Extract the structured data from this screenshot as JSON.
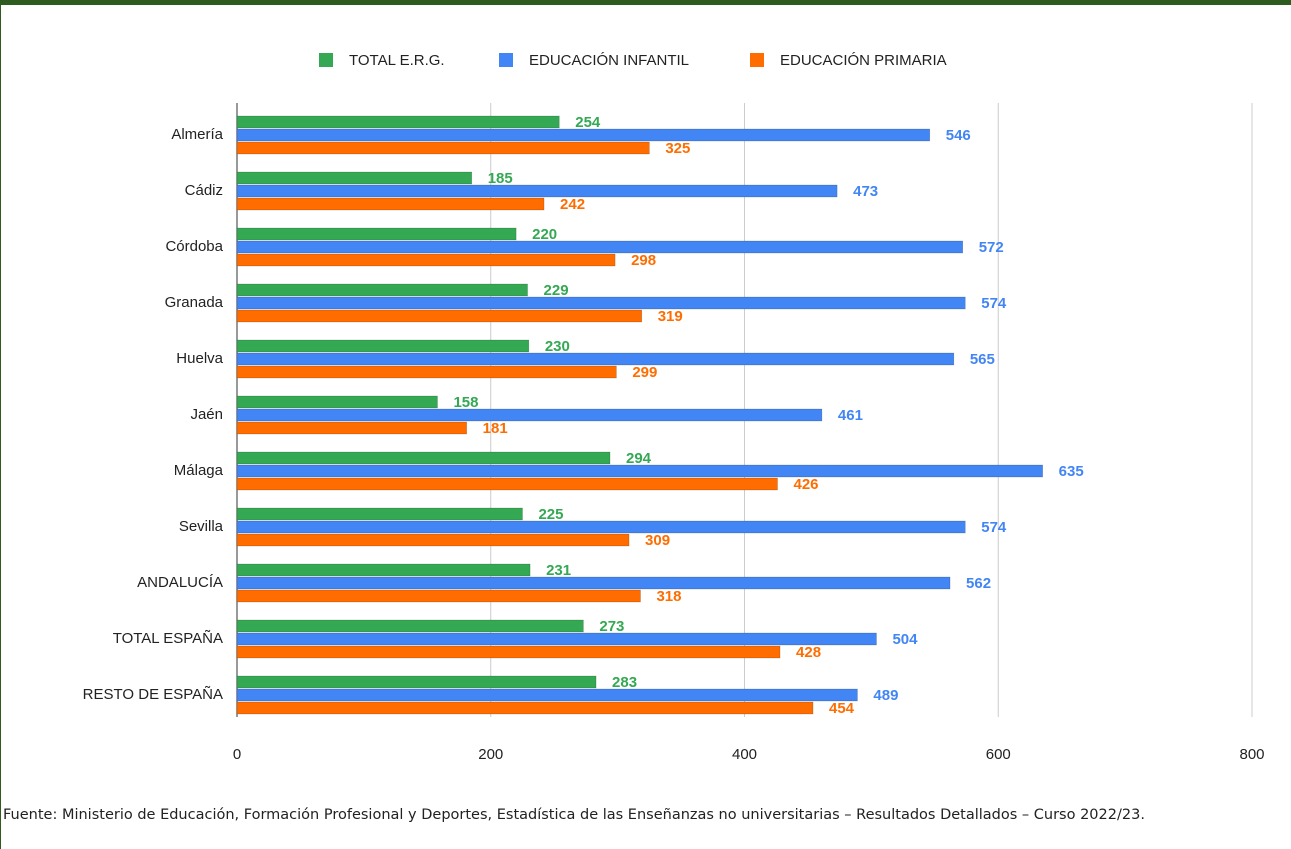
{
  "chart_data": {
    "type": "bar",
    "orientation": "horizontal",
    "categories": [
      "Almería",
      "Cádiz",
      "Córdoba",
      "Granada",
      "Huelva",
      "Jaén",
      "Málaga",
      "Sevilla",
      "ANDALUCÍA",
      "TOTAL ESPAÑA",
      "RESTO DE ESPAÑA"
    ],
    "series": [
      {
        "name": "TOTAL E.R.G.",
        "color": "#34a853",
        "values": [
          254,
          185,
          220,
          229,
          230,
          158,
          294,
          225,
          231,
          273,
          283
        ]
      },
      {
        "name": "EDUCACIÓN INFANTIL",
        "color": "#4285f4",
        "values": [
          546,
          473,
          572,
          574,
          565,
          461,
          635,
          574,
          562,
          504,
          489
        ]
      },
      {
        "name": "EDUCACIÓN PRIMARIA",
        "color": "#ff6d01",
        "values": [
          325,
          242,
          298,
          319,
          299,
          181,
          426,
          309,
          318,
          428,
          454
        ]
      }
    ],
    "xlim": [
      0,
      800
    ],
    "xticks": [
      0,
      200,
      400,
      600,
      800
    ],
    "grid": true,
    "legend": "top",
    "source": "Fuente: Ministerio de Educación, Formación Profesional y Deportes, Estadística de las Enseñanzas no universitarias – Resultados Detallados – Curso 2022/23."
  }
}
